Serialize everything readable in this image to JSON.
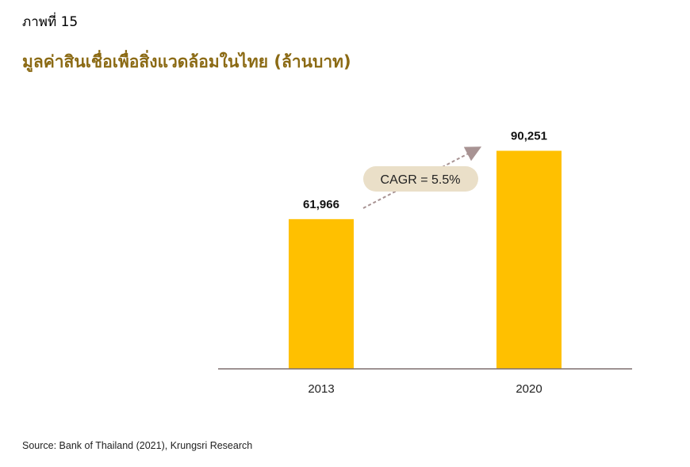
{
  "figure_label": "ภาพที่ 15",
  "title": "มูลค่าสินเชื่อเพื่อสิ่งแวดล้อมในไทย (ล้านบาท)",
  "source": "Source:  Bank of Thailand (2021), Krungsri Research",
  "annotation": {
    "text": "CAGR = 5.5%"
  },
  "colors": {
    "bar": "#FFC000",
    "title": "#8B6A14",
    "axis": "#7F6F6F",
    "arrow": "#A89393",
    "callout_bg": "#EADFC8"
  },
  "chart_data": {
    "type": "bar",
    "categories": [
      "2013",
      "2020"
    ],
    "values": [
      61966,
      90251
    ],
    "value_labels": [
      "61,966",
      "90,251"
    ],
    "ylim": [
      0,
      95000
    ],
    "grid": false,
    "legend": "none"
  }
}
